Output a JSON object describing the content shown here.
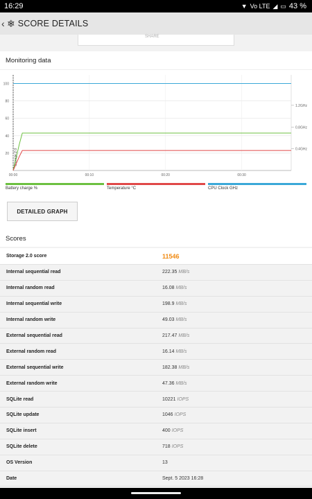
{
  "status": {
    "time": "16:29",
    "signal_text": "Vo LTE",
    "battery": "43 %"
  },
  "appbar": {
    "title": "SCORE DETAILS"
  },
  "scroll_card": {
    "text": "SHARE"
  },
  "monitoring": {
    "title": "Monitoring data",
    "legend": [
      {
        "label": "Battery charge %",
        "color": "#6cc040"
      },
      {
        "label": "Temperature °C",
        "color": "#e04848"
      },
      {
        "label": "CPU Clock GHz",
        "color": "#3aa8d8"
      }
    ],
    "button_label": "DETAILED GRAPH"
  },
  "chart_data": {
    "type": "line",
    "x_ticks": [
      "00:00",
      "00:10",
      "00:20",
      "00:30"
    ],
    "y_ticks": [
      "20",
      "40",
      "60",
      "80",
      "100"
    ],
    "y_right_ticks": [
      "0.4GHz",
      "0.8GHz",
      "1.2GHz"
    ],
    "vertical_label": "Storage 2.0",
    "xlim": [
      0,
      36.5
    ],
    "ylim": [
      0,
      110
    ],
    "series": [
      {
        "name": "Battery charge %",
        "color": "#3aa8d8",
        "x": [
          0,
          36.5
        ],
        "y": [
          100,
          100
        ]
      },
      {
        "name": "Temperature °C",
        "color": "#6cc040",
        "x": [
          0,
          0.8,
          1.2,
          36.5
        ],
        "y": [
          0,
          30,
          43,
          43
        ]
      },
      {
        "name": "CPU Clock GHz",
        "color": "#e04848",
        "x": [
          0,
          0.8,
          1.2,
          36.5
        ],
        "y": [
          0,
          16,
          23,
          23
        ]
      }
    ]
  },
  "scores": {
    "title": "Scores",
    "rows": [
      {
        "label": "Storage 2.0 score",
        "value": "11546",
        "unit": ""
      },
      {
        "label": "Internal sequential read",
        "value": "222.35",
        "unit": "MB/s"
      },
      {
        "label": "Internal random read",
        "value": "16.08",
        "unit": "MB/s"
      },
      {
        "label": "Internal sequential write",
        "value": "198.9",
        "unit": "MB/s"
      },
      {
        "label": "Internal random write",
        "value": "49.03",
        "unit": "MB/s"
      },
      {
        "label": "External sequential read",
        "value": "217.47",
        "unit": "MB/s"
      },
      {
        "label": "External random read",
        "value": "16.14",
        "unit": "MB/s"
      },
      {
        "label": "External sequential write",
        "value": "182.38",
        "unit": "MB/s"
      },
      {
        "label": "External random write",
        "value": "47.36",
        "unit": "MB/s"
      },
      {
        "label": "SQLite read",
        "value": "10221",
        "unit": "IOPS"
      },
      {
        "label": "SQLite update",
        "value": "1046",
        "unit": "IOPS"
      },
      {
        "label": "SQLite insert",
        "value": "400",
        "unit": "IOPS"
      },
      {
        "label": "SQLite delete",
        "value": "718",
        "unit": "IOPS"
      },
      {
        "label": "OS Version",
        "value": "13",
        "unit": ""
      },
      {
        "label": "Date",
        "value": "Sept. 5 2023 16:28",
        "unit": ""
      }
    ]
  }
}
